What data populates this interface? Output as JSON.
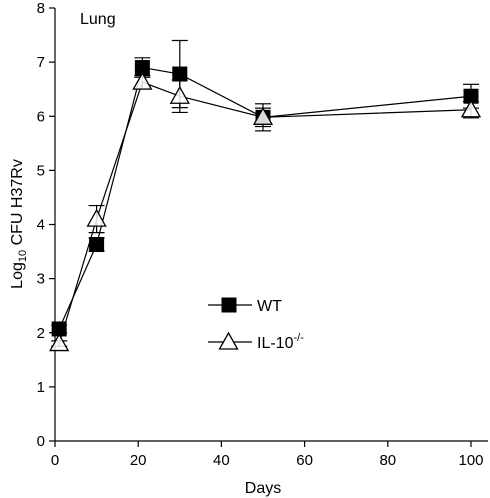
{
  "chart_data": {
    "type": "line",
    "panel_label": "Lung",
    "xlabel": "Days",
    "ylabel_prefix": "Log",
    "ylabel_sub": "10",
    "ylabel_suffix": " CFU H37Rv",
    "xlim": [
      0,
      100
    ],
    "ylim": [
      0,
      8
    ],
    "xticks": [
      0,
      20,
      40,
      60,
      80,
      100
    ],
    "yticks": [
      0,
      1,
      2,
      3,
      4,
      5,
      6,
      7,
      8
    ],
    "grid": false,
    "legend_position": "center",
    "series": [
      {
        "name": "WT",
        "marker": "filled-square",
        "color": "#000000",
        "x": [
          1,
          10,
          21,
          30,
          50,
          100
        ],
        "y": [
          2.07,
          3.63,
          6.9,
          6.78,
          5.98,
          6.37
        ],
        "err": [
          0.07,
          0.12,
          0.18,
          0.62,
          0.17,
          0.22
        ]
      },
      {
        "name": "IL-10",
        "name_sup": "-/-",
        "marker": "open-triangle",
        "color": "#000000",
        "x": [
          1,
          10,
          21,
          30,
          50,
          100
        ],
        "y": [
          1.8,
          4.1,
          6.63,
          6.37,
          5.98,
          6.12
        ],
        "err": [
          0.05,
          0.25,
          0.12,
          0.3,
          0.25,
          0.15
        ]
      }
    ]
  }
}
